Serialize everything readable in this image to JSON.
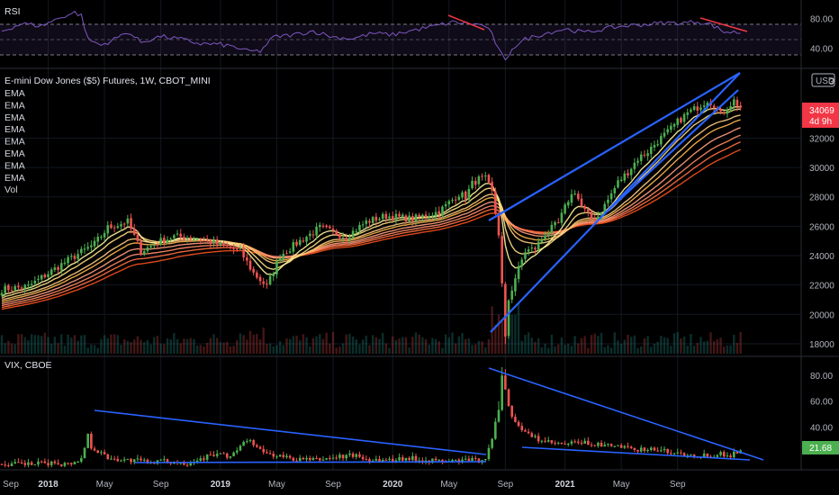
{
  "chart_data": {
    "type": "candlestick",
    "symbol_title": "E-mini Dow Jones ($5) Futures, 1W, CBOT_MINI",
    "indicator_labels": [
      "EMA",
      "EMA",
      "EMA",
      "EMA",
      "EMA",
      "EMA",
      "EMA",
      "EMA",
      "Vol"
    ],
    "currency_label": "USD",
    "last_price": "34069",
    "countdown": "4d 9h",
    "price_axis_ticks": [
      32000,
      30000,
      28000,
      26000,
      24000,
      22000,
      20000,
      18000
    ],
    "price_ylim": [
      17200,
      36500
    ],
    "price_anchors": [
      [
        0,
        21700
      ],
      [
        8,
        21900
      ],
      [
        18,
        23400
      ],
      [
        28,
        24800
      ],
      [
        32,
        25900
      ],
      [
        38,
        26300
      ],
      [
        42,
        24300
      ],
      [
        48,
        25000
      ],
      [
        52,
        25300
      ],
      [
        58,
        25200
      ],
      [
        65,
        24800
      ],
      [
        72,
        24300
      ],
      [
        76,
        22800
      ],
      [
        80,
        21900
      ],
      [
        84,
        24000
      ],
      [
        90,
        25000
      ],
      [
        96,
        25900
      ],
      [
        104,
        25300
      ],
      [
        110,
        26300
      ],
      [
        116,
        26700
      ],
      [
        124,
        26500
      ],
      [
        132,
        27000
      ],
      [
        138,
        28200
      ],
      [
        140,
        28000
      ],
      [
        142,
        28900
      ],
      [
        144,
        29200
      ],
      [
        146,
        29200
      ],
      [
        148,
        28300
      ],
      [
        150,
        25500
      ],
      [
        151,
        22000
      ],
      [
        152,
        18300
      ],
      [
        153,
        21000
      ],
      [
        155,
        22500
      ],
      [
        158,
        24300
      ],
      [
        161,
        24500
      ],
      [
        164,
        25500
      ],
      [
        168,
        26200
      ],
      [
        171,
        27800
      ],
      [
        173,
        28400
      ],
      [
        175,
        27300
      ],
      [
        178,
        26500
      ],
      [
        180,
        26700
      ],
      [
        183,
        27800
      ],
      [
        186,
        29000
      ],
      [
        189,
        29700
      ],
      [
        192,
        30600
      ],
      [
        195,
        31100
      ],
      [
        198,
        31800
      ],
      [
        201,
        32400
      ],
      [
        204,
        33100
      ],
      [
        207,
        33700
      ],
      [
        210,
        34100
      ],
      [
        213,
        34600
      ],
      [
        215,
        34300
      ],
      [
        217,
        33600
      ],
      [
        219,
        34100
      ],
      [
        221,
        34550
      ],
      [
        223,
        34069
      ]
    ],
    "rsi": {
      "title": "RSI",
      "axis_ticks": [
        80,
        40
      ],
      "ylim": [
        14,
        100
      ],
      "anchors": [
        [
          0,
          63
        ],
        [
          6,
          73
        ],
        [
          12,
          70
        ],
        [
          18,
          82
        ],
        [
          22,
          88
        ],
        [
          24,
          84
        ],
        [
          26,
          52
        ],
        [
          30,
          44
        ],
        [
          34,
          52
        ],
        [
          38,
          62
        ],
        [
          42,
          48
        ],
        [
          48,
          56
        ],
        [
          54,
          52
        ],
        [
          60,
          46
        ],
        [
          66,
          45
        ],
        [
          70,
          42
        ],
        [
          74,
          36
        ],
        [
          78,
          36
        ],
        [
          82,
          55
        ],
        [
          88,
          58
        ],
        [
          94,
          63
        ],
        [
          100,
          55
        ],
        [
          106,
          53
        ],
        [
          112,
          60
        ],
        [
          118,
          58
        ],
        [
          124,
          64
        ],
        [
          130,
          69
        ],
        [
          136,
          75
        ],
        [
          142,
          73
        ],
        [
          146,
          70
        ],
        [
          148,
          58
        ],
        [
          150,
          38
        ],
        [
          152,
          22
        ],
        [
          154,
          40
        ],
        [
          158,
          52
        ],
        [
          164,
          60
        ],
        [
          170,
          66
        ],
        [
          176,
          61
        ],
        [
          182,
          66
        ],
        [
          188,
          70
        ],
        [
          194,
          72
        ],
        [
          200,
          74
        ],
        [
          206,
          74
        ],
        [
          210,
          76
        ],
        [
          214,
          72
        ],
        [
          218,
          62
        ],
        [
          223,
          61
        ]
      ]
    },
    "vix": {
      "title": "VIX, CBOE",
      "axis_ticks": [
        80.0,
        60.0,
        40.0
      ],
      "last_value": "21.68",
      "ylim": [
        8,
        92
      ],
      "anchors": [
        [
          0,
          11
        ],
        [
          10,
          11
        ],
        [
          16,
          12
        ],
        [
          20,
          11
        ],
        [
          24,
          15
        ],
        [
          26,
          34
        ],
        [
          27,
          25
        ],
        [
          29,
          21
        ],
        [
          32,
          16
        ],
        [
          38,
          14
        ],
        [
          44,
          13
        ],
        [
          50,
          13
        ],
        [
          56,
          12
        ],
        [
          62,
          17
        ],
        [
          66,
          19
        ],
        [
          68,
          16
        ],
        [
          72,
          24
        ],
        [
          74,
          30
        ],
        [
          76,
          27
        ],
        [
          78,
          21
        ],
        [
          82,
          18
        ],
        [
          88,
          15
        ],
        [
          94,
          14
        ],
        [
          100,
          16
        ],
        [
          106,
          18
        ],
        [
          110,
          15
        ],
        [
          116,
          14
        ],
        [
          122,
          16
        ],
        [
          128,
          14
        ],
        [
          134,
          13
        ],
        [
          140,
          14
        ],
        [
          144,
          14
        ],
        [
          146,
          16
        ],
        [
          148,
          30
        ],
        [
          150,
          55
        ],
        [
          151,
          80
        ],
        [
          152,
          68
        ],
        [
          154,
          48
        ],
        [
          158,
          35
        ],
        [
          162,
          30
        ],
        [
          166,
          27
        ],
        [
          170,
          26
        ],
        [
          174,
          28
        ],
        [
          178,
          27
        ],
        [
          182,
          25
        ],
        [
          186,
          25
        ],
        [
          190,
          22
        ],
        [
          194,
          23
        ],
        [
          198,
          22
        ],
        [
          202,
          20
        ],
        [
          206,
          19
        ],
        [
          210,
          18
        ],
        [
          214,
          18
        ],
        [
          216,
          19
        ],
        [
          220,
          18
        ],
        [
          223,
          21.68
        ]
      ]
    },
    "time_axis_labels": [
      {
        "label": "Sep",
        "bold": false,
        "bar": -3
      },
      {
        "label": "2018",
        "bold": true,
        "bar": 14
      },
      {
        "label": "May",
        "bold": false,
        "bar": 31
      },
      {
        "label": "Sep",
        "bold": false,
        "bar": 48
      },
      {
        "label": "2019",
        "bold": true,
        "bar": 66
      },
      {
        "label": "May",
        "bold": false,
        "bar": 83
      },
      {
        "label": "Sep",
        "bold": false,
        "bar": 100
      },
      {
        "label": "2020",
        "bold": true,
        "bar": 118
      },
      {
        "label": "May",
        "bold": false,
        "bar": 135
      },
      {
        "label": "Sep",
        "bold": false,
        "bar": 152
      },
      {
        "label": "2021",
        "bold": true,
        "bar": 170
      },
      {
        "label": "May",
        "bold": false,
        "bar": 187
      },
      {
        "label": "Sep",
        "bold": false,
        "bar": 204
      }
    ],
    "colors": {
      "up": "#26a69a",
      "up_bright": "#4caf50",
      "down": "#ef5350",
      "rsi_line": "#7e57c2",
      "trendline": "#2962ff",
      "divergence": "#f23645",
      "ema_palette": [
        "#fff59d",
        "#ffe082",
        "#ffcc80",
        "#ffb74d",
        "#ff9e80",
        "#ff8a65",
        "#ff7043",
        "#f4511e"
      ]
    }
  }
}
